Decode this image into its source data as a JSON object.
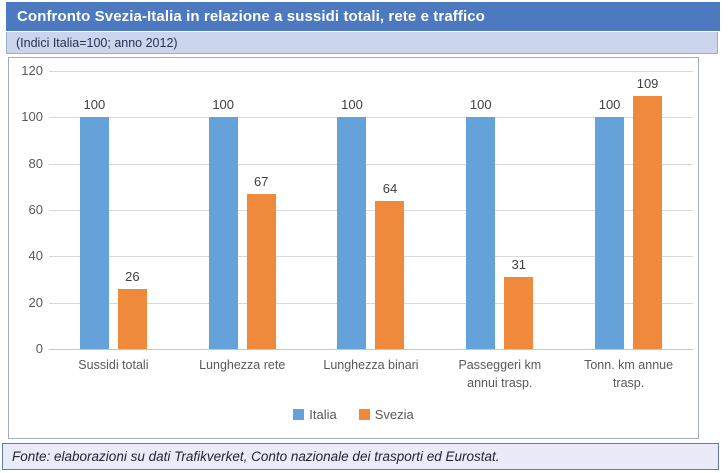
{
  "header": {
    "title": "Confronto Svezia-Italia in relazione a sussidi totali, rete e traffico",
    "subtitle": "(Indici Italia=100; anno 2012)"
  },
  "footer": {
    "source": "Fonte: elaborazioni su dati Trafikverket, Conto nazionale dei trasporti ed Eurostat."
  },
  "colors": {
    "title_bar_bg": "#4D79C1",
    "title_text": "#FFFFFF",
    "subtitle_bg": "#CDD5ED",
    "italia_blue": "#65A2D9",
    "svezia_orange": "#EF8A3C",
    "gridline": "#D9D9D9",
    "axis_text": "#595959",
    "data_label_text": "#404040",
    "footer_bg": "#E9ECF8"
  },
  "chart_data": {
    "type": "bar",
    "categories": [
      "Sussidi totali",
      "Lunghezza rete",
      "Lunghezza binari",
      "Passeggeri km annui trasp.",
      "Tonn. km annue trasp."
    ],
    "series": [
      {
        "name": "Italia",
        "color": "#65A2D9",
        "values": [
          100,
          100,
          100,
          100,
          100
        ]
      },
      {
        "name": "Svezia",
        "color": "#EF8A3C",
        "values": [
          26,
          67,
          64,
          31,
          109
        ]
      }
    ],
    "title": "Confronto Svezia-Italia in relazione a sussidi totali, rete e traffico",
    "subtitle": "(Indici Italia=100; anno 2012)",
    "xlabel": "",
    "ylabel": "",
    "ylim": [
      0,
      120
    ],
    "yticks": [
      0,
      20,
      40,
      60,
      80,
      100,
      120
    ],
    "grid": true,
    "legend_position": "bottom",
    "data_labels": true
  }
}
